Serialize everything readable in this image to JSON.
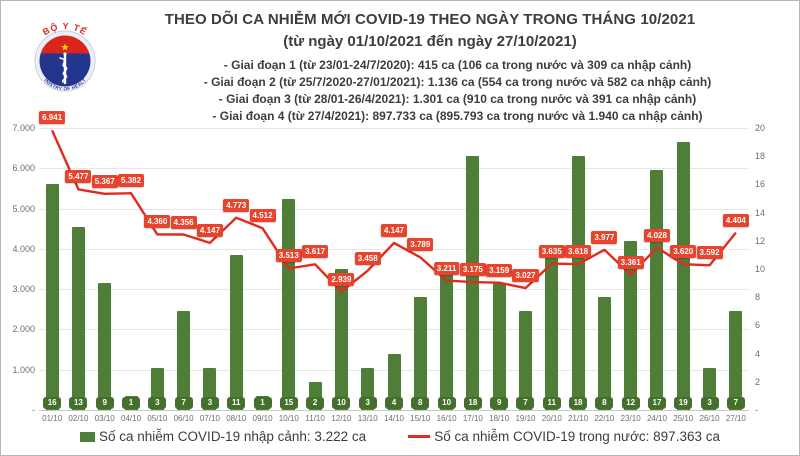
{
  "logo": {
    "top_text": "BỘ Y TẾ",
    "bottom_text": "MINISTRY OF HEALTH",
    "flag_color": "#da251d",
    "star_color": "#ffde00",
    "shield_color": "#22368e"
  },
  "title": "THEO DÕI CA NHIỄM MỚI COVID-19 THEO NGÀY TRONG THÁNG 10/2021",
  "subtitle": "(từ ngày 01/10/2021 đến ngày 27/10/2021)",
  "notes": [
    "- Giai đoạn 1 (từ 23/01-24/7/2020): 415 ca (106 ca trong nước và 309 ca nhập cảnh)",
    "- Giai đoạn 2 (từ 25/7/2020-27/01/2021): 1.136 ca (554 ca trong nước và 582 ca nhập cảnh)",
    "- Giai đoạn 3 (từ 28/01-26/4/2021): 1.301 ca (910 ca trong nước và 391 ca nhập cảnh)",
    "- Giai đoạn 4 (từ 27/4/2021): 897.733 ca (895.793 ca trong nước và 1.940 ca nhập cảnh)"
  ],
  "chart_data": {
    "type": "combo-bar-line",
    "grid": true,
    "legend_position": "bottom",
    "categories": [
      "01/10",
      "02/10",
      "03/10",
      "04/10",
      "05/10",
      "06/10",
      "07/10",
      "08/10",
      "09/10",
      "10/10",
      "11/10",
      "12/10",
      "13/10",
      "14/10",
      "15/10",
      "16/10",
      "17/10",
      "18/10",
      "19/10",
      "20/10",
      "21/10",
      "22/10",
      "23/10",
      "24/10",
      "25/10",
      "26/10",
      "27/10"
    ],
    "series": [
      {
        "name": "Số ca nhiễm COVID-19 nhập cảnh",
        "chart": "bar",
        "axis": "right",
        "color": "#4e7e38",
        "label_bg": "#44702b",
        "values": [
          16,
          13,
          9,
          1,
          3,
          7,
          3,
          11,
          1,
          15,
          2,
          10,
          3,
          4,
          8,
          10,
          18,
          9,
          7,
          11,
          18,
          8,
          12,
          17,
          19,
          3,
          7
        ]
      },
      {
        "name": "Số ca nhiễm COVID-19 trong nước",
        "chart": "line",
        "axis": "left",
        "color": "#e02c1d",
        "label_bg": "#e8432c",
        "values": [
          6941,
          5477,
          5367,
          5382,
          4360,
          4356,
          4147,
          4773,
          4512,
          3513,
          3617,
          2939,
          3458,
          4147,
          3789,
          3211,
          3175,
          3159,
          3027,
          3635,
          3618,
          3977,
          3361,
          4028,
          3620,
          3592,
          4404
        ],
        "labels": [
          "6.941",
          "5.477",
          "5.367",
          "5.382",
          "4.360",
          "4.356",
          "4.147",
          "4.773",
          "4.512",
          "3.513",
          "3.617",
          "2.939",
          "3.458",
          "4.147",
          "3.789",
          "3.211",
          "3.175",
          "3.159",
          "3.027",
          "3.635",
          "3.618",
          "3.977",
          "3.361",
          "4.028",
          "3.620",
          "3.592",
          "4.404"
        ]
      }
    ],
    "left_axis": {
      "max": 7000,
      "tick_labels": [
        "7.000",
        "6.000",
        "5.000",
        "4.000",
        "3.000",
        "2.000",
        "1.000",
        "-"
      ],
      "tick_values": [
        7000,
        6000,
        5000,
        4000,
        3000,
        2000,
        1000,
        0
      ]
    },
    "right_axis": {
      "max": 20,
      "tick_labels": [
        "20",
        "18",
        "16",
        "14",
        "12",
        "10",
        "8",
        "6",
        "4",
        "2",
        "-"
      ],
      "tick_values": [
        20,
        18,
        16,
        14,
        12,
        10,
        8,
        6,
        4,
        2,
        0
      ]
    }
  },
  "legend": {
    "items": [
      {
        "label": "Số ca nhiễm COVID-19 nhập cảnh: 3.222 ca",
        "marker": "square",
        "color": "#4e7e38"
      },
      {
        "label": "Số ca nhiễm COVID-19 trong nước: 897.363 ca",
        "marker": "line",
        "color": "#e02c1d"
      }
    ]
  }
}
